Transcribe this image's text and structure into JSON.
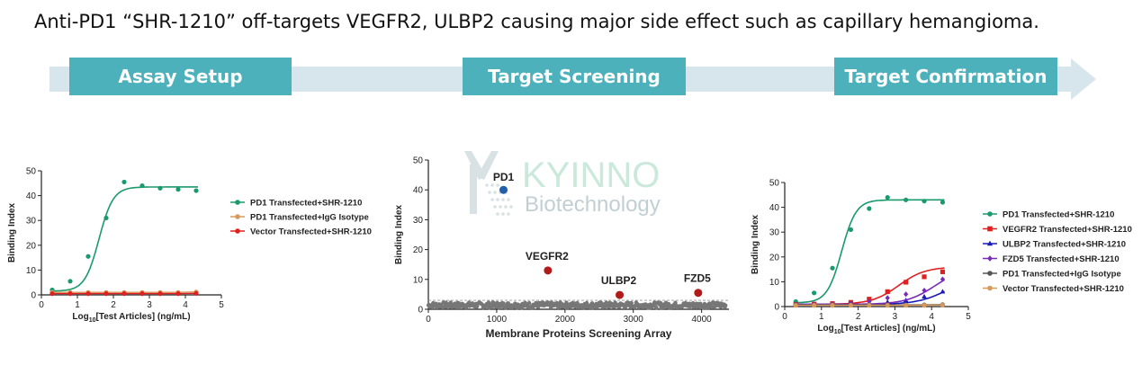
{
  "title": "Anti-PD1 “SHR-1210” off-targets VEGFR2, ULBP2 causing major side effect such as capillary hemangioma.",
  "process_steps": [
    {
      "label": "Assay Setup"
    },
    {
      "label": "Target Screening"
    },
    {
      "label": "Target Confirmation"
    }
  ],
  "watermark": {
    "text1": "KYINNO",
    "text2": "Biotechnology"
  },
  "colors": {
    "flow_bar": "#d6e6ec",
    "step_box": "#4cb1bb",
    "teal": "#1a9a6c",
    "tan": "#d89a5c",
    "red": "#e02020",
    "blue": "#1a1ab8",
    "purple": "#7a2ab8",
    "gray": "#555555",
    "dark_red": "#b21b1b"
  },
  "chart_data": [
    {
      "type": "scatter",
      "ylabel": "Binding Index",
      "xlabel_prefix": "Log",
      "xlabel_sub": "10",
      "xlabel_suffix": "[Test Articles] (ng/mL)",
      "xlim": [
        0,
        5
      ],
      "ylim": [
        0,
        50
      ],
      "xticks": [
        0,
        1,
        2,
        3,
        4,
        5
      ],
      "yticks": [
        0,
        10,
        20,
        30,
        40,
        50
      ],
      "legend_position": "right",
      "series": [
        {
          "name": "PD1 Transfected+SHR-1210",
          "color": "#1a9a6c",
          "marker": "circle",
          "x": [
            0.3,
            0.8,
            1.3,
            1.8,
            2.3,
            2.8,
            3.3,
            3.8,
            4.3
          ],
          "y": [
            2,
            5.5,
            15.5,
            31,
            45.5,
            44,
            43,
            42.5,
            42
          ],
          "fit": {
            "bottom": 1.5,
            "top": 43.5,
            "ec50": 1.6,
            "hill": 2.2
          }
        },
        {
          "name": "PD1 Transfected+IgG Isotype",
          "color": "#d89a5c",
          "marker": "circle",
          "x": [
            0.3,
            0.8,
            1.3,
            1.8,
            2.3,
            2.8,
            3.3,
            3.8,
            4.3
          ],
          "y": [
            1,
            1,
            1,
            1,
            1,
            1,
            1,
            1,
            1.2
          ]
        },
        {
          "name": "Vector Transfected+SHR-1210",
          "color": "#e02020",
          "marker": "circle",
          "x": [
            0.3,
            0.8,
            1.3,
            1.8,
            2.3,
            2.8,
            3.3,
            3.8,
            4.3
          ],
          "y": [
            0.5,
            0.5,
            0.5,
            0.5,
            0.5,
            0.5,
            0.5,
            0.5,
            0.6
          ]
        }
      ]
    },
    {
      "type": "scatter",
      "ylabel": "Binding Index",
      "xlabel": "Membrane Proteins Screening Array",
      "xlim": [
        0,
        4400
      ],
      "ylim": [
        0,
        50
      ],
      "xticks": [
        0,
        1000,
        2000,
        3000,
        4000
      ],
      "yticks": [
        0,
        10,
        20,
        30,
        40,
        50
      ],
      "background_points": {
        "count": 440,
        "x_max": 4350,
        "y_min": 0.5,
        "y_max": 2.3,
        "color": "#777777"
      },
      "hits": [
        {
          "label": "PD1",
          "x": 1100,
          "y": 40,
          "color": "#1f5fae"
        },
        {
          "label": "VEGFR2",
          "x": 1750,
          "y": 13,
          "color": "#b21b1b"
        },
        {
          "label": "ULBP2",
          "x": 2800,
          "y": 4.8,
          "color": "#b21b1b"
        },
        {
          "label": "FZD5",
          "x": 3950,
          "y": 5.5,
          "color": "#b21b1b"
        }
      ]
    },
    {
      "type": "scatter",
      "ylabel": "Binding Index",
      "xlabel_prefix": "Log",
      "xlabel_sub": "10",
      "xlabel_suffix": "[Test Articles] (ng/mL)",
      "xlim": [
        0,
        5
      ],
      "ylim": [
        0,
        50
      ],
      "xticks": [
        0,
        1,
        2,
        3,
        4,
        5
      ],
      "yticks": [
        0,
        10,
        20,
        30,
        40,
        50
      ],
      "legend_position": "right",
      "series": [
        {
          "name": "PD1 Transfected+SHR-1210",
          "color": "#1a9a6c",
          "marker": "circle",
          "x": [
            0.3,
            0.8,
            1.3,
            1.8,
            2.3,
            2.8,
            3.3,
            3.8,
            4.3
          ],
          "y": [
            2,
            5.5,
            15.5,
            31,
            39.5,
            44,
            43,
            42.5,
            42
          ],
          "fit": {
            "bottom": 1.5,
            "top": 43,
            "ec50": 1.55,
            "hill": 2.2
          }
        },
        {
          "name": "VEGFR2 Transfected+SHR-1210",
          "color": "#e02020",
          "marker": "square",
          "x": [
            0.3,
            0.8,
            1.3,
            1.8,
            2.3,
            2.8,
            3.3,
            3.8,
            4.3
          ],
          "y": [
            0.8,
            1,
            1.2,
            1.7,
            3,
            6,
            9.8,
            12,
            14
          ],
          "fit": {
            "bottom": 0.9,
            "top": 16,
            "ec50": 3.1,
            "hill": 1.2
          }
        },
        {
          "name": "ULBP2 Transfected+SHR-1210",
          "color": "#1a1ab8",
          "marker": "triangle",
          "x": [
            0.3,
            0.8,
            1.3,
            1.8,
            2.3,
            2.8,
            3.3,
            3.8,
            4.3
          ],
          "y": [
            0.8,
            0.9,
            1,
            1,
            1.3,
            1.8,
            2.5,
            4,
            6
          ],
          "fit": {
            "bottom": 0.9,
            "top": 12,
            "ec50": 4.4,
            "hill": 1.1
          }
        },
        {
          "name": "FZD5 Transfected+SHR-1210",
          "color": "#7a2ab8",
          "marker": "diamond",
          "x": [
            0.3,
            0.8,
            1.3,
            1.8,
            2.3,
            2.8,
            3.3,
            3.8,
            4.3
          ],
          "y": [
            0.8,
            0.9,
            1,
            1.3,
            2,
            3.5,
            5,
            6.5,
            11
          ],
          "fit": {
            "bottom": 0.9,
            "top": 16,
            "ec50": 4.1,
            "hill": 1.1
          }
        },
        {
          "name": "PD1 Transfected+IgG Isotype",
          "color": "#555555",
          "marker": "circle",
          "x": [
            0.3,
            0.8,
            1.3,
            1.8,
            2.3,
            2.8,
            3.3,
            3.8,
            4.3
          ],
          "y": [
            0.7,
            0.7,
            0.7,
            0.7,
            0.7,
            0.7,
            0.7,
            0.7,
            0.8
          ]
        },
        {
          "name": "Vector Transfected+SHR-1210",
          "color": "#d89a5c",
          "marker": "circle",
          "x": [
            0.3,
            0.8,
            1.3,
            1.8,
            2.3,
            2.8,
            3.3,
            3.8,
            4.3
          ],
          "y": [
            0.5,
            0.5,
            0.5,
            0.5,
            0.5,
            0.5,
            0.5,
            0.5,
            0.6
          ]
        }
      ]
    }
  ]
}
